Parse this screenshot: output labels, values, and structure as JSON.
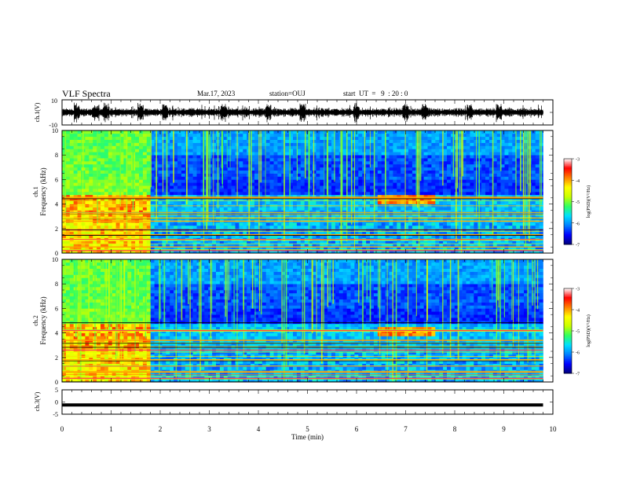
{
  "header": {
    "title": "VLF Spectra",
    "date": "Mar.17, 2023",
    "station": "station=OUJ",
    "start": "start  UT  =   9  : 20 : 0"
  },
  "chart_data": [
    {
      "type": "line",
      "title": "",
      "ylabel": "ch.1(V)",
      "ylim": [
        -10,
        10
      ],
      "yticks": [
        "10",
        "-10"
      ],
      "xlim": [
        0,
        10
      ],
      "grid": false,
      "series": [
        {
          "values": "dense waveform, amplitude approx +/-4 V with bursts up to +/-9 V"
        }
      ]
    },
    {
      "type": "heatmap",
      "ylabel": "ch.1\nFrequency (kHz)",
      "xlabel": "Time (min)",
      "xlim": [
        0,
        10
      ],
      "ylim": [
        0,
        10
      ],
      "yticks": [
        "0",
        "2",
        "4",
        "6",
        "8",
        "10"
      ],
      "data_end_min": 9.8,
      "colorbar": {
        "label": "log(PSD)(V²/Hz)",
        "range": [
          -7,
          -3
        ],
        "ticks": [
          "-3",
          "-4",
          "-5",
          "-6",
          "-7"
        ]
      },
      "features": {
        "strong_lines_khz": [
          0.2,
          0.5,
          1.1,
          1.5,
          1.9,
          2.6,
          3.3,
          4.5
        ],
        "high_band_activity_until_min": 1.8,
        "enhanced_emission_interval_min": [
          6.4,
          7.6
        ],
        "enhanced_emission_freq_khz": [
          4.0,
          4.8
        ]
      }
    },
    {
      "type": "heatmap",
      "ylabel": "ch.2\nFrequency (kHz)",
      "xlabel": "Time (min)",
      "xlim": [
        0,
        10
      ],
      "ylim": [
        0,
        10
      ],
      "yticks": [
        "0",
        "2",
        "4",
        "6",
        "8",
        "10"
      ],
      "data_end_min": 9.8,
      "colorbar": {
        "label": "log(PSD)(V²/Hz)",
        "range": [
          -7,
          -3
        ],
        "ticks": [
          "-3",
          "-4",
          "-5",
          "-6",
          "-7"
        ]
      },
      "features": {
        "strong_lines_khz": [
          0.3,
          0.8,
          1.3,
          1.8,
          2.6,
          3.4,
          4.2
        ],
        "high_band_activity_until_min": 1.8,
        "enhanced_emission_interval_min": [
          6.4,
          7.6
        ],
        "enhanced_emission_freq_khz": [
          3.8,
          4.6
        ]
      }
    },
    {
      "type": "line",
      "ylabel": "ch.3(V)",
      "xlabel": "Time (min)",
      "ylim": [
        -5,
        5
      ],
      "yticks": [
        "5",
        "0",
        "-5"
      ],
      "xlim": [
        0,
        10
      ],
      "xticks": [
        "0",
        "1",
        "2",
        "3",
        "4",
        "5",
        "6",
        "7",
        "8",
        "9",
        "10"
      ],
      "series": [
        {
          "x": [
            0,
            9.8
          ],
          "values": [
            -1.2,
            -1.2
          ]
        }
      ]
    }
  ],
  "colors": {
    "cmap": [
      "#00007a",
      "#0000ff",
      "#0080ff",
      "#00e0ff",
      "#30ff60",
      "#c8ff00",
      "#ffff00",
      "#ff8000",
      "#ff0000",
      "#ffffff"
    ],
    "axis": "#000000",
    "trace": "#000000"
  }
}
